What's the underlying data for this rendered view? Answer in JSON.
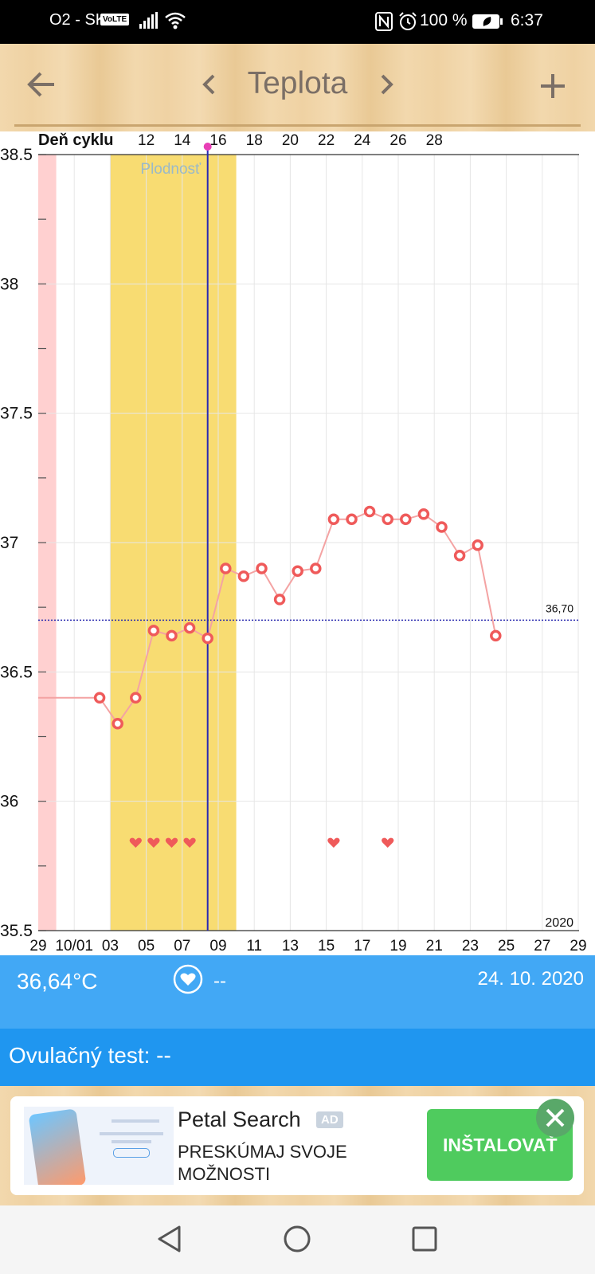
{
  "status_bar": {
    "carrier": "O2 - SK",
    "volte": "VoLTE",
    "battery": "100 %",
    "time": "6:37"
  },
  "header": {
    "title": "Teplota",
    "icons": [
      "back-arrow-icon",
      "chevron-left-icon",
      "chevron-right-icon",
      "plus-icon"
    ]
  },
  "chart_data": {
    "type": "line",
    "title": "",
    "cycle_label": "Deň cyklu",
    "cycle_ticks": [
      "12",
      "14",
      "16",
      "18",
      "20",
      "22",
      "24",
      "26",
      "28"
    ],
    "x_tick_labels": [
      "29",
      "10/01",
      "03",
      "05",
      "07",
      "09",
      "11",
      "13",
      "15",
      "17",
      "19",
      "21",
      "23",
      "25",
      "27",
      "29"
    ],
    "y_tick_labels": [
      "38.5",
      "38",
      "37.5",
      "37",
      "36.5",
      "36",
      "35.5"
    ],
    "ylim": [
      35.5,
      38.5
    ],
    "year_label": "2020",
    "fertile_label": "Plodnosť",
    "coverline_label": "36,70",
    "coverline_value": 36.7,
    "series": [
      {
        "x": [
          "10/02",
          "10/03",
          "10/04",
          "10/05",
          "10/06",
          "10/07",
          "10/08",
          "10/09",
          "10/10",
          "10/11",
          "10/12",
          "10/13",
          "10/14",
          "10/15",
          "10/16",
          "10/17",
          "10/18",
          "10/19",
          "10/20",
          "10/21",
          "10/22",
          "10/23",
          "10/24"
        ],
        "y": [
          36.4,
          36.3,
          36.4,
          36.66,
          36.64,
          36.67,
          36.63,
          36.9,
          36.87,
          36.9,
          36.78,
          36.89,
          36.9,
          37.09,
          37.09,
          37.12,
          37.09,
          37.09,
          37.11,
          37.06,
          36.95,
          36.99,
          36.64
        ]
      }
    ],
    "intercourse_days": [
      "10/04",
      "10/05",
      "10/06",
      "10/07",
      "10/15",
      "10/18"
    ],
    "period_days": [
      "09/29"
    ],
    "fertile_window": [
      "10/03",
      "10/09"
    ],
    "ovulation_day": "10/08",
    "grid": true,
    "colors": {
      "line": "#f4a3a3",
      "marker": "#ef5a5a",
      "fertile": "#f8dc72",
      "period": "#ffd0d0",
      "ovulation_line": "#2828b4",
      "ovulation_dot": "#e83fb6",
      "coverline": "#2a2ab0"
    }
  },
  "info": {
    "temperature": "36,64°C",
    "sex_value": "--",
    "date": "24. 10. 2020",
    "heart_icon": "heart-icon"
  },
  "ovulation_test": "Ovulačný test: --",
  "ad": {
    "title": "Petal Search",
    "badge": "AD",
    "description": "PRESKÚMAJ SVOJE MOŽNOSTI",
    "button": "INŠTALOVAŤ",
    "close_icon": "close-icon"
  },
  "nav_icons": [
    "back-triangle-icon",
    "home-circle-icon",
    "recents-square-icon"
  ],
  "colors": {
    "info_panel": "#42a8f5",
    "ovu_bar": "#1f96f0",
    "install": "#4fcb5e"
  }
}
